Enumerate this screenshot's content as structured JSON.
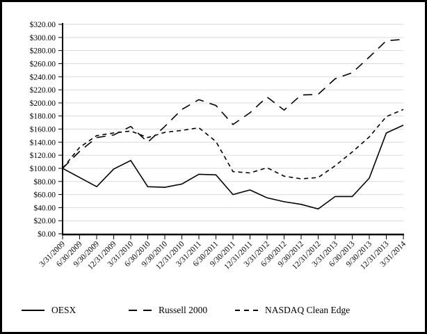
{
  "chart_data": {
    "type": "line",
    "title": "",
    "xlabel": "",
    "ylabel": "",
    "ylim": [
      0,
      320
    ],
    "y_step": 20,
    "grid": true,
    "legend_position": "bottom",
    "x_tick_labels": [
      "3/31/2009",
      "6/30/2009",
      "9/30/2009",
      "12/31/2009",
      "3/31/2010",
      "6/30/2010",
      "9/30/2010",
      "12/31/2010",
      "3/31/2011",
      "6/30/2011",
      "9/30/2011",
      "12/31/2011",
      "3/31/2012",
      "6/30/2012",
      "9/30/2012",
      "12/31/2012",
      "3/31/2013",
      "6/30/2013",
      "9/30/2013",
      "12/31/2013",
      "3/31/2014"
    ],
    "y_tick_labels": [
      "$0.00",
      "$20.00",
      "$40.00",
      "$60.00",
      "$80.00",
      "$100.00",
      "$120.00",
      "$140.00",
      "$160.00",
      "$180.00",
      "$200.00",
      "$220.00",
      "$240.00",
      "$260.00",
      "$280.00",
      "$300.00",
      "$320.00"
    ],
    "series": [
      {
        "name": "OESX",
        "dash": "solid",
        "values": [
          100,
          86,
          72,
          99,
          112,
          72,
          71,
          76,
          91,
          90,
          60,
          67,
          55,
          49,
          45,
          38,
          57,
          57,
          85,
          154,
          166
        ]
      },
      {
        "name": "Russell 2000",
        "dash": "long-dash",
        "values": [
          100,
          126,
          147,
          151,
          164,
          140,
          164,
          190,
          205,
          196,
          167,
          185,
          209,
          189,
          212,
          213,
          237,
          246,
          270,
          295,
          297
        ]
      },
      {
        "name": "NASDAQ Clean Edge",
        "dash": "short-dash",
        "values": [
          100,
          132,
          150,
          154,
          157,
          147,
          155,
          158,
          162,
          141,
          95,
          93,
          101,
          88,
          84,
          86,
          104,
          125,
          148,
          179,
          190
        ]
      }
    ],
    "colors": {
      "line": "#000000",
      "grid": "#d9d9d9",
      "background": "#ffffff",
      "frame_border": "#000000"
    }
  }
}
